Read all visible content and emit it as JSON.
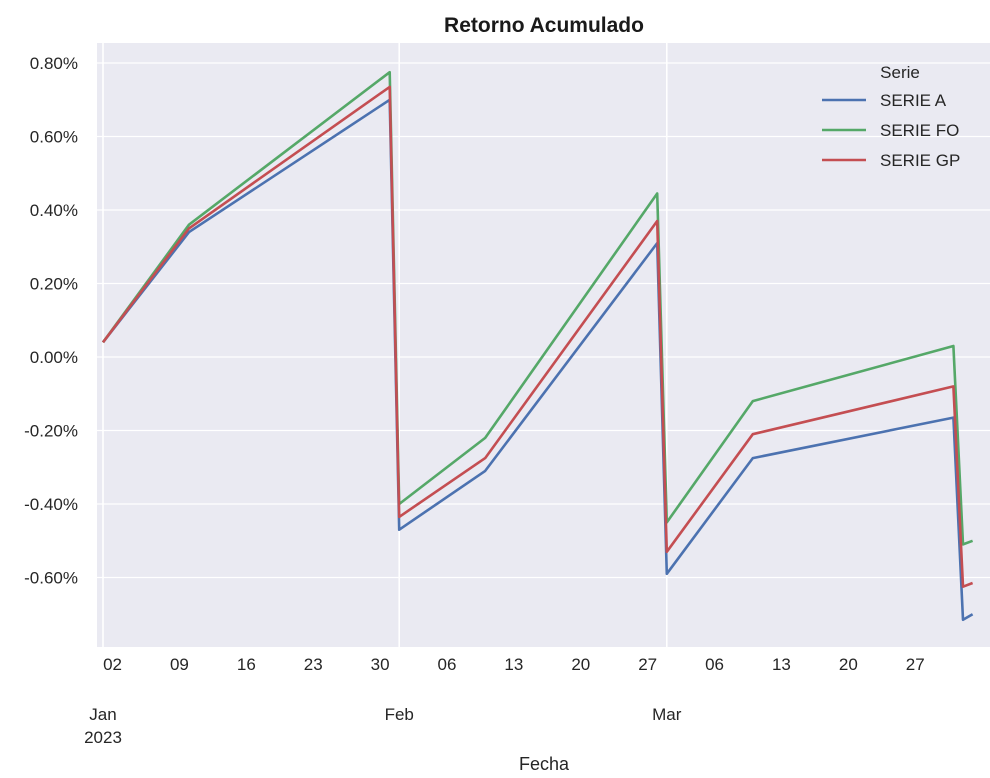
{
  "chart_data": {
    "type": "line",
    "title": "Retorno Acumulado",
    "xlabel": "Fecha",
    "ylabel": "",
    "ylim": [
      -0.78,
      0.86
    ],
    "xlim": [
      "2023-01-01",
      "2023-04-01"
    ],
    "y_ticks": [
      {
        "value": 0.8,
        "label": "0.80%"
      },
      {
        "value": 0.6,
        "label": "0.60%"
      },
      {
        "value": 0.4,
        "label": "0.40%"
      },
      {
        "value": 0.2,
        "label": "0.20%"
      },
      {
        "value": 0.0,
        "label": "0.00%"
      },
      {
        "value": -0.2,
        "label": "-0.20%"
      },
      {
        "value": -0.4,
        "label": "-0.40%"
      },
      {
        "value": -0.6,
        "label": "-0.60%"
      }
    ],
    "x_minor_ticks": [
      {
        "date": "2023-01-02",
        "label": "02"
      },
      {
        "date": "2023-01-09",
        "label": "09"
      },
      {
        "date": "2023-01-16",
        "label": "16"
      },
      {
        "date": "2023-01-23",
        "label": "23"
      },
      {
        "date": "2023-01-30",
        "label": "30"
      },
      {
        "date": "2023-02-06",
        "label": "06"
      },
      {
        "date": "2023-02-13",
        "label": "13"
      },
      {
        "date": "2023-02-20",
        "label": "20"
      },
      {
        "date": "2023-02-27",
        "label": "27"
      },
      {
        "date": "2023-03-06",
        "label": "06"
      },
      {
        "date": "2023-03-13",
        "label": "13"
      },
      {
        "date": "2023-03-20",
        "label": "20"
      },
      {
        "date": "2023-03-27",
        "label": "27"
      }
    ],
    "x_major_ticks": [
      {
        "date": "2023-01-01",
        "label": "Jan",
        "sublabel": "2023"
      },
      {
        "date": "2023-02-01",
        "label": "Feb",
        "sublabel": ""
      },
      {
        "date": "2023-03-01",
        "label": "Mar",
        "sublabel": ""
      }
    ],
    "legend": {
      "title": "Serie",
      "position": "top-right"
    },
    "grid": true,
    "series": [
      {
        "name": "SERIE A",
        "color": "#4c72b0",
        "points": [
          [
            "2023-01-01",
            0.04
          ],
          [
            "2023-01-10",
            0.34
          ],
          [
            "2023-01-31",
            0.7
          ],
          [
            "2023-02-01",
            -0.47
          ],
          [
            "2023-02-10",
            -0.31
          ],
          [
            "2023-02-28",
            0.31
          ],
          [
            "2023-03-01",
            -0.59
          ],
          [
            "2023-03-10",
            -0.275
          ],
          [
            "2023-03-31",
            -0.165
          ],
          [
            "2023-04-01",
            -0.715
          ],
          [
            "2023-04-02",
            -0.7
          ]
        ]
      },
      {
        "name": "SERIE FO",
        "color": "#55a868",
        "points": [
          [
            "2023-01-01",
            0.04
          ],
          [
            "2023-01-10",
            0.36
          ],
          [
            "2023-01-31",
            0.775
          ],
          [
            "2023-02-01",
            -0.4
          ],
          [
            "2023-02-10",
            -0.22
          ],
          [
            "2023-02-28",
            0.445
          ],
          [
            "2023-03-01",
            -0.45
          ],
          [
            "2023-03-10",
            -0.12
          ],
          [
            "2023-03-31",
            0.03
          ],
          [
            "2023-04-01",
            -0.51
          ],
          [
            "2023-04-02",
            -0.5
          ]
        ]
      },
      {
        "name": "SERIE GP",
        "color": "#c44e52",
        "points": [
          [
            "2023-01-01",
            0.04
          ],
          [
            "2023-01-10",
            0.35
          ],
          [
            "2023-01-31",
            0.735
          ],
          [
            "2023-02-01",
            -0.435
          ],
          [
            "2023-02-10",
            -0.275
          ],
          [
            "2023-02-28",
            0.37
          ],
          [
            "2023-03-01",
            -0.53
          ],
          [
            "2023-03-10",
            -0.21
          ],
          [
            "2023-03-31",
            -0.08
          ],
          [
            "2023-04-01",
            -0.625
          ],
          [
            "2023-04-02",
            -0.615
          ]
        ]
      }
    ]
  }
}
